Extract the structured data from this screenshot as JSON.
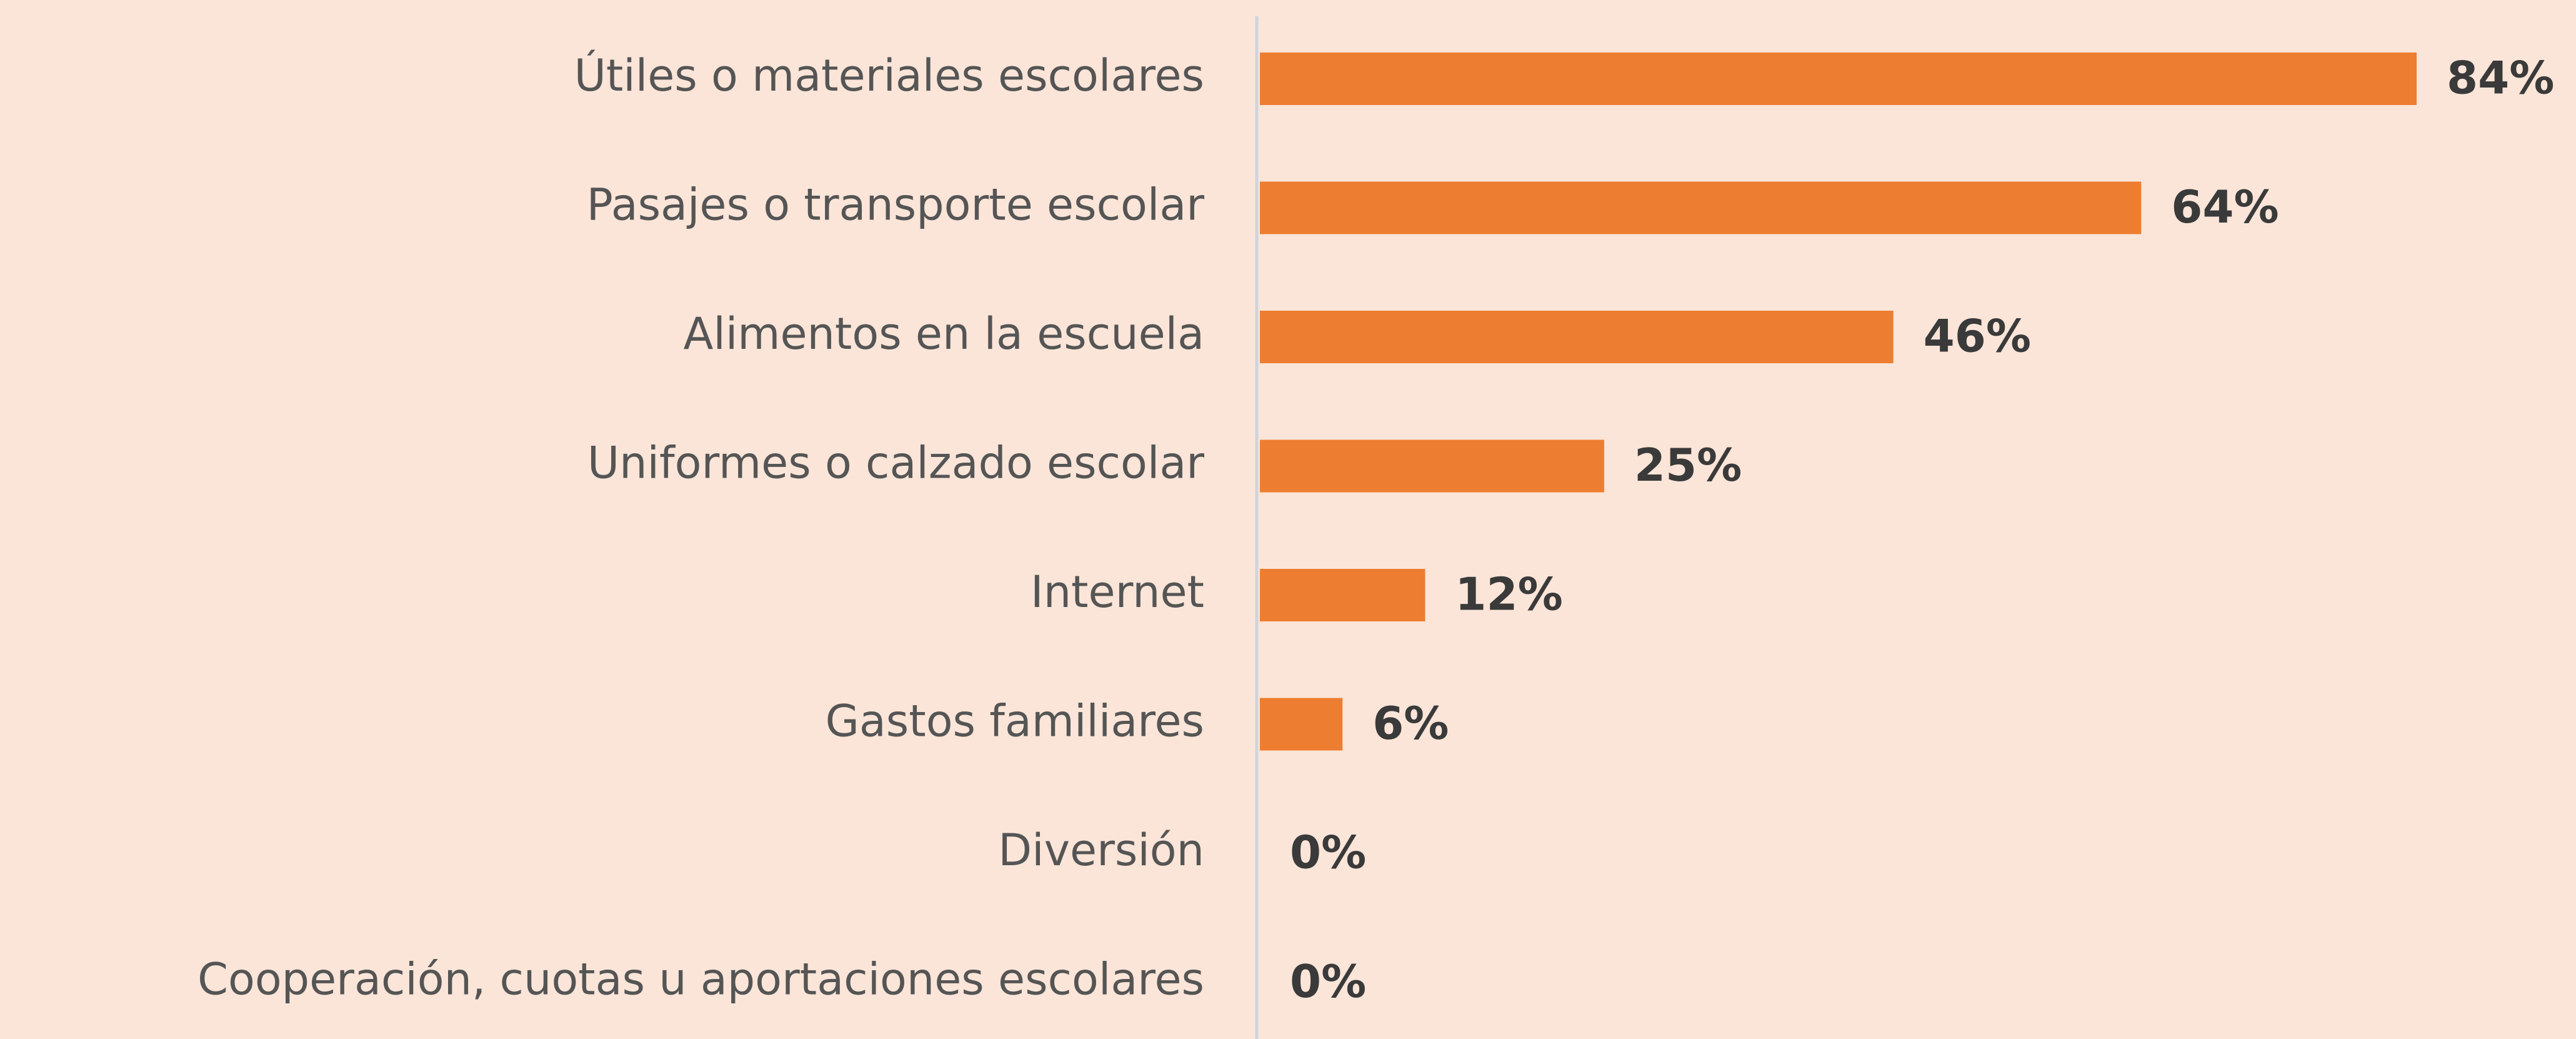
{
  "chart_data": {
    "type": "hbar",
    "categories": [
      "Útiles o materiales escolares",
      "Pasajes o transporte escolar",
      "Alimentos en la escuela",
      "Uniformes o calzado escolar",
      "Internet",
      "Gastos familiares",
      "Diversión",
      "Cooperación, cuotas u aportaciones escolares"
    ],
    "values": [
      84,
      64,
      46,
      25,
      12,
      6,
      0,
      0
    ],
    "value_labels": [
      "84%",
      "64%",
      "46%",
      "25%",
      "12%",
      "6%",
      "0%",
      "0%"
    ],
    "color": "#ed7d31"
  }
}
